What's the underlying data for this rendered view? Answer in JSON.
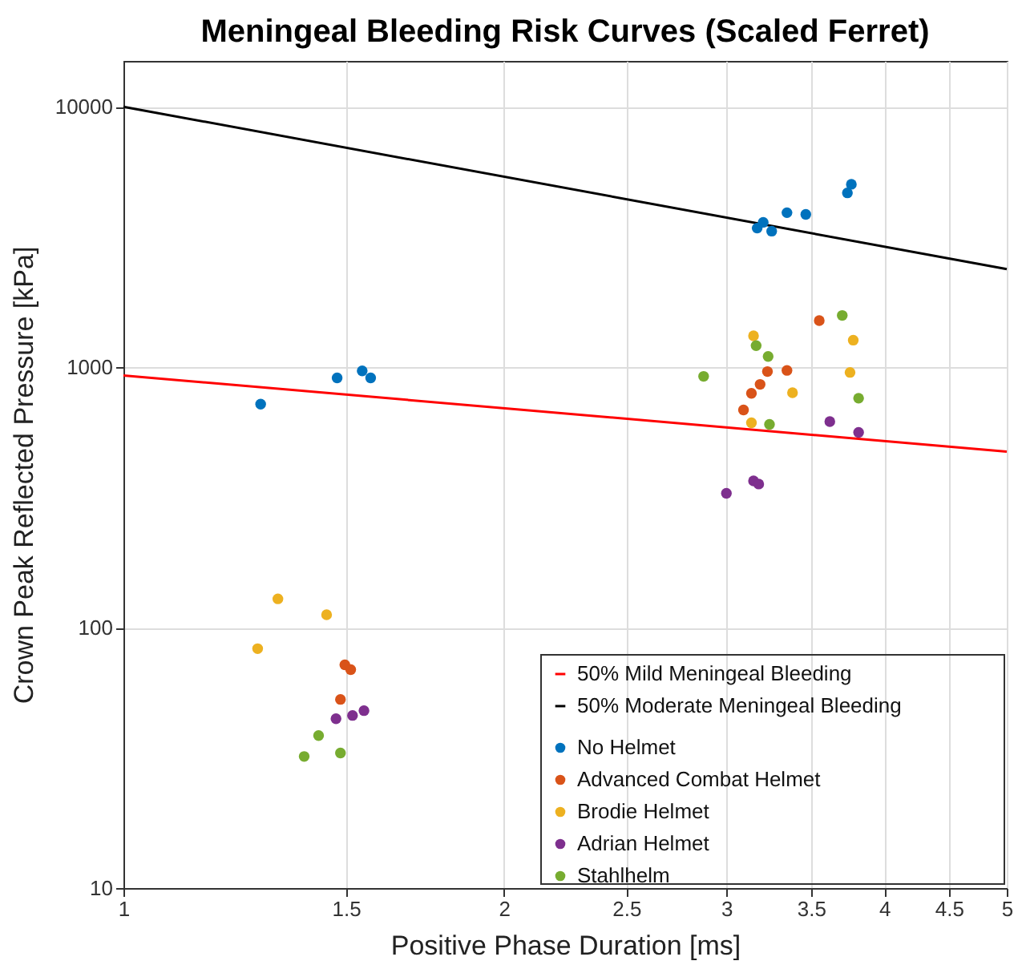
{
  "chart_data": {
    "type": "scatter",
    "title": "Meningeal Bleeding Risk Curves (Scaled Ferret)",
    "xlabel": "Positive Phase Duration [ms]",
    "ylabel": "Crown Peak Reflected Pressure [kPa]",
    "log": "xy",
    "xlim": [
      1,
      5
    ],
    "ylim": [
      10,
      15000
    ],
    "xticks": [
      1,
      1.5,
      2,
      2.5,
      3,
      3.5,
      4,
      4.5,
      5
    ],
    "yticks": [
      10,
      100,
      1000,
      10000
    ],
    "grid": true,
    "legend": "bottom right",
    "marker": "circle",
    "line_style": "solid",
    "series": [
      {
        "name": "50% Mild Meningeal Bleeding",
        "type": "line",
        "marker": "none",
        "color": "#ff0000",
        "x": [
          1,
          5
        ],
        "values": [
          930,
          474
        ]
      },
      {
        "name": "50% Moderate Meningeal Bleeding",
        "type": "line",
        "marker": "none",
        "color": "#000000",
        "x": [
          1,
          5
        ],
        "values": [
          10000,
          2380
        ]
      },
      {
        "name": "No Helmet",
        "color": "#0072bd",
        "x": [
          1.284,
          1.476,
          1.545,
          1.569,
          3.173,
          3.208,
          3.258,
          3.35,
          3.467,
          3.74,
          3.767
        ],
        "values": [
          721,
          910,
          968,
          910,
          3420,
          3600,
          3330,
          3920,
          3860,
          4670,
          5040
        ]
      },
      {
        "name": "Advanced Combat Helmet",
        "color": "#d95319",
        "x": [
          3.553,
          3.233,
          3.35,
          3.19,
          3.14,
          3.095,
          1.497,
          1.513,
          1.485
        ],
        "values": [
          1510,
          962,
          972,
          859,
          794,
          685,
          72,
          69,
          53
        ]
      },
      {
        "name": "Brodie Helmet",
        "color": "#edb120",
        "x": [
          3.152,
          3.78,
          3.758,
          3.384,
          3.14,
          1.325,
          1.448,
          1.277
        ],
        "values": [
          1320,
          1270,
          955,
          798,
          612,
          129,
          112,
          83
        ]
      },
      {
        "name": "Adrian Helmet",
        "color": "#7e2f8e",
        "x": [
          3.622,
          3.817,
          3.152,
          3.182,
          3.0,
          1.473,
          1.518,
          1.55
        ],
        "values": [
          618,
          562,
          366,
          356,
          328,
          44.7,
          46,
          48
        ]
      },
      {
        "name": "Stahlhelm",
        "color": "#77ac30",
        "x": [
          3.705,
          3.167,
          3.237,
          2.878,
          3.817,
          3.245,
          1.427,
          1.39,
          1.485
        ],
        "values": [
          1580,
          1210,
          1100,
          922,
          760,
          603,
          38.5,
          32,
          33
        ]
      }
    ]
  }
}
